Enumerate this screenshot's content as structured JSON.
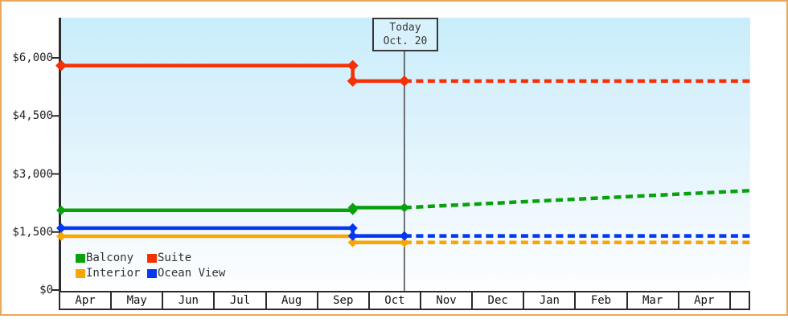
{
  "today_marker": {
    "label": "Today",
    "date": "Oct. 20"
  },
  "legend": {
    "items": [
      {
        "label": "Balcony",
        "color": "#09a10e"
      },
      {
        "label": "Suite",
        "color": "#f53005"
      },
      {
        "label": "Interior",
        "color": "#f9a602"
      },
      {
        "label": "Ocean View",
        "color": "#0437f0"
      }
    ]
  },
  "chart_data": {
    "type": "line",
    "title": "",
    "x_unit": "months (0 = Apr 1 of current year, 13.35 = right edge the following Apr)",
    "x_axis": {
      "tick_labels": [
        "Apr",
        "May",
        "Jun",
        "Jul",
        "Aug",
        "Sep",
        "Oct",
        "Nov",
        "Dec",
        "Jan",
        "Feb",
        "Mar",
        "Apr"
      ]
    },
    "y_axis": {
      "ticks": [
        {
          "value": 6000,
          "label": "$6,000"
        },
        {
          "value": 4500,
          "label": "$4,500"
        },
        {
          "value": 3000,
          "label": "$3,000"
        },
        {
          "value": 1500,
          "label": "$1,500"
        },
        {
          "value": 0,
          "label": "$0"
        }
      ],
      "range": [
        0,
        7000
      ],
      "grid": false
    },
    "today": {
      "label": "Today",
      "date": "Oct. 20",
      "x": 6.65
    },
    "legend_position": "bottom-left-inside",
    "series": [
      {
        "name": "Interior",
        "color": "#f9a602",
        "history": [
          {
            "date": "Apr 1",
            "x": 0,
            "value": 1390
          },
          {
            "date": "Sep 20",
            "x": 5.65,
            "value": 1390
          },
          {
            "date": "Sep 20",
            "x": 5.65,
            "value": 1230
          },
          {
            "date": "Oct 20",
            "x": 6.65,
            "value": 1230
          }
        ],
        "projection": [
          {
            "date": "Oct 20",
            "x": 6.65,
            "value": 1230
          },
          {
            "date": "Apr",
            "x": 13.35,
            "value": 1230
          }
        ]
      },
      {
        "name": "Ocean View",
        "color": "#0437f0",
        "history": [
          {
            "date": "Apr 1",
            "x": 0,
            "value": 1600
          },
          {
            "date": "Sep 20",
            "x": 5.65,
            "value": 1600
          },
          {
            "date": "Sep 20",
            "x": 5.65,
            "value": 1400
          },
          {
            "date": "Oct 20",
            "x": 6.65,
            "value": 1400
          }
        ],
        "projection": [
          {
            "date": "Oct 20",
            "x": 6.65,
            "value": 1400
          },
          {
            "date": "Apr",
            "x": 13.35,
            "value": 1400
          }
        ]
      },
      {
        "name": "Balcony",
        "color": "#09a10e",
        "history": [
          {
            "date": "Apr 1",
            "x": 0,
            "value": 2060
          },
          {
            "date": "Sep 20",
            "x": 5.65,
            "value": 2060
          },
          {
            "date": "Sep 20",
            "x": 5.65,
            "value": 2130
          },
          {
            "date": "Oct 20",
            "x": 6.65,
            "value": 2130
          }
        ],
        "projection": [
          {
            "date": "Oct 20",
            "x": 6.65,
            "value": 2130
          },
          {
            "date": "Apr",
            "x": 13.35,
            "value": 2570
          }
        ]
      },
      {
        "name": "Suite",
        "color": "#f53005",
        "history": [
          {
            "date": "Apr 1",
            "x": 0,
            "value": 5800
          },
          {
            "date": "Sep 20",
            "x": 5.65,
            "value": 5800
          },
          {
            "date": "Sep 20",
            "x": 5.65,
            "value": 5400
          },
          {
            "date": "Oct 20",
            "x": 6.65,
            "value": 5400
          }
        ],
        "projection": [
          {
            "date": "Oct 20",
            "x": 6.65,
            "value": 5400
          },
          {
            "date": "Apr",
            "x": 13.35,
            "value": 5400
          }
        ]
      }
    ]
  },
  "theme": {
    "frame_border": "#e9a85a",
    "plot_gradient_top": "#c9edfb",
    "plot_gradient_bottom": "#fdfeff",
    "axis_color": "#2b2b2b",
    "text_color": "#222222",
    "today_box_bg": "#d7f2fc"
  }
}
